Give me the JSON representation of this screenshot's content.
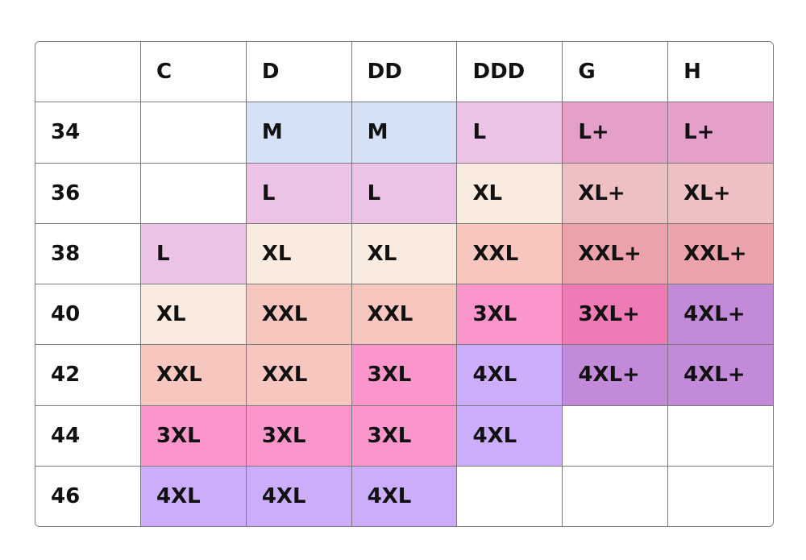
{
  "table": {
    "headers": [
      "C",
      "D",
      "DD",
      "DDD",
      "G",
      "H"
    ],
    "rows": [
      {
        "label": "34",
        "cells": [
          null,
          "M",
          "M",
          "L",
          "L+",
          "L+"
        ],
        "colors": [
          null,
          "#d5e1f5",
          "#d5e1f5",
          "#ecc3e6",
          "#e4a0c8",
          "#e4a0c8"
        ]
      },
      {
        "label": "36",
        "cells": [
          null,
          "L",
          "L",
          "XL",
          "XL+",
          "XL+"
        ],
        "colors": [
          null,
          "#ecc3e6",
          "#ecc3e6",
          "#f9ebe0",
          "#eec0c3",
          "#eec0c3"
        ]
      },
      {
        "label": "38",
        "cells": [
          "L",
          "XL",
          "XL",
          "XXL",
          "XXL+",
          "XXL+"
        ],
        "colors": [
          "#ecc3e6",
          "#f9ebe0",
          "#f9ebe0",
          "#f7c6bf",
          "#eba2aa",
          "#eba2aa"
        ]
      },
      {
        "label": "40",
        "cells": [
          "XL",
          "XXL",
          "XXL",
          "3XL",
          "3XL+",
          "4XL+"
        ],
        "colors": [
          "#f9ebe0",
          "#f7c6bf",
          "#f7c6bf",
          "#fb96cc",
          "#ef7ab5",
          "#c48ada"
        ]
      },
      {
        "label": "42",
        "cells": [
          "XXL",
          "XXL",
          "3XL",
          "4XL",
          "4XL+",
          "4XL+"
        ],
        "colors": [
          "#f7c6bf",
          "#f7c6bf",
          "#fb96cc",
          "#cbadfc",
          "#c48ada",
          "#c48ada"
        ]
      },
      {
        "label": "44",
        "cells": [
          "3XL",
          "3XL",
          "3XL",
          "4XL",
          null,
          null
        ],
        "colors": [
          "#fb96cc",
          "#fb96cc",
          "#fb96cc",
          "#cbadfc",
          null,
          null
        ]
      },
      {
        "label": "46",
        "cells": [
          "4XL",
          "4XL",
          "4XL",
          null,
          null,
          null
        ],
        "colors": [
          "#cbadfc",
          "#cbadfc",
          "#cbadfc",
          null,
          null,
          null
        ]
      }
    ]
  }
}
